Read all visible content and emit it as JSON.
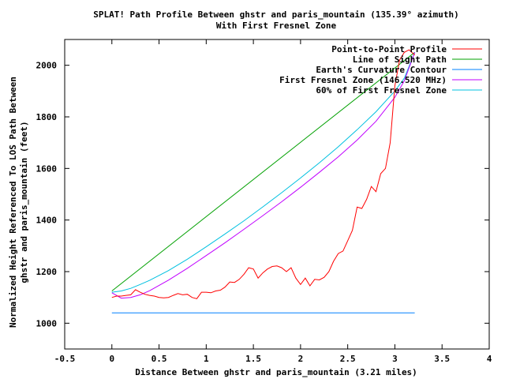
{
  "chart_data": {
    "type": "line",
    "title_lines": [
      "SPLAT! Path Profile Between ghstr and paris_mountain (135.39° azimuth)",
      "With First Fresnel Zone"
    ],
    "xlabel": "Distance Between ghstr and paris_mountain (3.21 miles)",
    "ylabel_lines": [
      "Normalized Height Referenced To LOS Path Between",
      "ghstr and paris_mountain (feet)"
    ],
    "xlim": [
      -0.5,
      4
    ],
    "ylim": [
      900,
      2100
    ],
    "x_ticks": [
      -0.5,
      0,
      0.5,
      1,
      1.5,
      2,
      2.5,
      3,
      3.5,
      4
    ],
    "x_tick_labels": [
      "-0.5",
      "0",
      "0.5",
      "1",
      "1.5",
      "2",
      "2.5",
      "3",
      "3.5",
      "4"
    ],
    "y_ticks": [
      1000,
      1200,
      1400,
      1600,
      1800,
      2000
    ],
    "y_tick_labels": [
      "1000",
      "1200",
      "1400",
      "1600",
      "1800",
      "2000"
    ],
    "grid": false,
    "legend_position": "top-right",
    "series": [
      {
        "name": "Point-to-Point Profile",
        "color": "#ff0000",
        "x": [
          0,
          0.05,
          0.1,
          0.15,
          0.2,
          0.25,
          0.3,
          0.35,
          0.4,
          0.45,
          0.5,
          0.55,
          0.6,
          0.65,
          0.7,
          0.75,
          0.8,
          0.85,
          0.9,
          0.95,
          1.0,
          1.05,
          1.1,
          1.15,
          1.2,
          1.25,
          1.3,
          1.35,
          1.4,
          1.45,
          1.5,
          1.55,
          1.6,
          1.65,
          1.7,
          1.75,
          1.8,
          1.85,
          1.9,
          1.95,
          2.0,
          2.05,
          2.1,
          2.15,
          2.2,
          2.25,
          2.3,
          2.35,
          2.4,
          2.45,
          2.5,
          2.55,
          2.6,
          2.65,
          2.7,
          2.75,
          2.8,
          2.85,
          2.9,
          2.95,
          3.0,
          3.05,
          3.1,
          3.15,
          3.21
        ],
        "values": [
          1100,
          1105,
          1105,
          1108,
          1110,
          1130,
          1120,
          1112,
          1108,
          1105,
          1100,
          1098,
          1100,
          1108,
          1115,
          1110,
          1112,
          1100,
          1095,
          1120,
          1120,
          1118,
          1125,
          1128,
          1140,
          1160,
          1158,
          1170,
          1190,
          1215,
          1210,
          1175,
          1195,
          1210,
          1220,
          1222,
          1215,
          1200,
          1215,
          1175,
          1150,
          1175,
          1145,
          1170,
          1168,
          1178,
          1200,
          1240,
          1270,
          1280,
          1320,
          1360,
          1450,
          1445,
          1480,
          1530,
          1510,
          1580,
          1600,
          1700,
          1920,
          2020,
          2050,
          2060,
          2040
        ]
      },
      {
        "name": "Line of Sight Path",
        "color": "#00a000",
        "x": [
          0,
          3.21
        ],
        "values": [
          1125,
          2050
        ]
      },
      {
        "name": "Earth's Curvature Contour",
        "color": "#0080ff",
        "x": [
          0,
          3.21
        ],
        "values": [
          1040,
          1040
        ]
      },
      {
        "name": "First Fresnel Zone (146.520 MHz)",
        "color": "#c000ff",
        "x": [
          0,
          0.1,
          0.2,
          0.3,
          0.4,
          0.6,
          0.8,
          1.0,
          1.2,
          1.4,
          1.6,
          1.8,
          2.0,
          2.2,
          2.4,
          2.6,
          2.8,
          3.0,
          3.1,
          3.21
        ],
        "values": [
          1118,
          1097,
          1100,
          1110,
          1126,
          1167,
          1213,
          1262,
          1312,
          1364,
          1417,
          1471,
          1527,
          1585,
          1645,
          1710,
          1783,
          1876,
          1940,
          2050
        ]
      },
      {
        "name": "60% of First Fresnel Zone",
        "color": "#00c0e0",
        "x": [
          0,
          0.1,
          0.2,
          0.3,
          0.4,
          0.6,
          0.8,
          1.0,
          1.2,
          1.4,
          1.6,
          1.8,
          2.0,
          2.2,
          2.4,
          2.6,
          2.8,
          3.0,
          3.1,
          3.21
        ],
        "values": [
          1120,
          1125,
          1135,
          1150,
          1166,
          1204,
          1248,
          1296,
          1346,
          1397,
          1451,
          1506,
          1563,
          1622,
          1684,
          1750,
          1820,
          1900,
          1950,
          2050
        ]
      }
    ]
  }
}
